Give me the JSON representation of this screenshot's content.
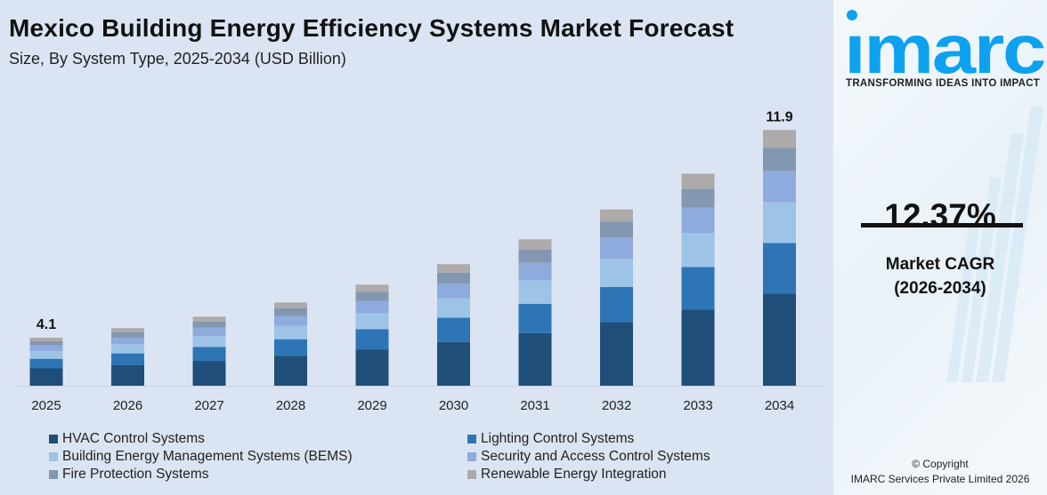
{
  "header": {
    "title": "Mexico Building Energy Efficiency Systems Market Forecast",
    "subtitle": "Size, By System Type, 2025-2034 (USD Billion)"
  },
  "chart_data": {
    "type": "bar",
    "stacked": true,
    "categories": [
      "2025",
      "2026",
      "2027",
      "2028",
      "2029",
      "2030",
      "2031",
      "2032",
      "2033",
      "2034"
    ],
    "series": [
      {
        "name": "HVAC Control Systems",
        "color": "#1f4e79",
        "values": [
          1.48,
          1.61,
          1.76,
          1.95,
          2.19,
          2.47,
          2.8,
          3.21,
          3.69,
          4.28
        ]
      },
      {
        "name": "Lighting Control Systems",
        "color": "#2e75b6",
        "values": [
          0.82,
          0.89,
          0.98,
          1.08,
          1.22,
          1.37,
          1.56,
          1.78,
          2.05,
          2.36
        ]
      },
      {
        "name": "Building Energy Management Systems (BEMS)",
        "color": "#9dc3e6",
        "values": [
          0.66,
          0.71,
          0.78,
          0.87,
          0.97,
          1.1,
          1.25,
          1.43,
          1.64,
          1.9
        ]
      },
      {
        "name": "Security and Access Control Systems",
        "color": "#8faadc",
        "values": [
          0.49,
          0.54,
          0.59,
          0.65,
          0.73,
          0.82,
          0.93,
          1.07,
          1.23,
          1.45
        ]
      },
      {
        "name": "Fire Protection Systems",
        "color": "#8497b0",
        "values": [
          0.37,
          0.4,
          0.44,
          0.49,
          0.55,
          0.62,
          0.7,
          0.8,
          0.92,
          1.07
        ]
      },
      {
        "name": "Renewable Energy Integration",
        "color": "#aeaaaa",
        "values": [
          0.28,
          0.31,
          0.34,
          0.38,
          0.43,
          0.48,
          0.55,
          0.62,
          0.72,
          0.83
        ]
      }
    ],
    "data_labels": {
      "2025": "4.1",
      "2034": "11.9"
    },
    "grid": false,
    "legend_position": "bottom"
  },
  "side": {
    "logo_text": "imarc",
    "tagline": "TRANSFORMING IDEAS INTO IMPACT",
    "cagr_value": "12.37%",
    "cagr_label": "Market CAGR",
    "cagr_period": "(2026-2034)",
    "copyright_1": "© Copyright",
    "copyright_2": "IMARC Services Private Limited 2026",
    "brand_color": "#0da2f0"
  }
}
